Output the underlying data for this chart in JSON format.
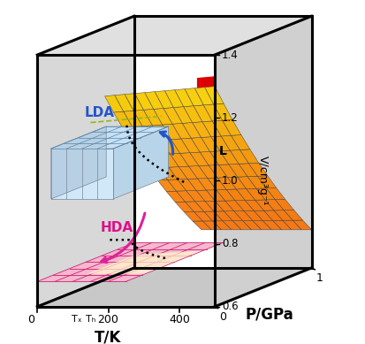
{
  "xlabel": "T/K",
  "ylabel": "P/GPa",
  "zlabel": "V/cm³g⁻¹",
  "T_ticks": [
    "0",
    "200",
    "400"
  ],
  "P_ticks": [
    "0",
    "1"
  ],
  "V_ticks": [
    "0.6",
    "0.8",
    "1.0",
    "1.2",
    "1.4"
  ],
  "LDA_text": "LDA",
  "HDA_text": "HDA",
  "L_label": "L",
  "Tx_label": "Tₓ",
  "TH_label": "Tₕ",
  "box_face_color": "#d8d8d8",
  "box_edge_color": "#000000",
  "HDA_fill": "#f0a0b8",
  "HDA_line": "#dd2288",
  "LDA_fill": "#c0d8f0",
  "LDA_line": "#6688bb",
  "liquid_orange": "#f5a020",
  "liquid_yellow": "#ffe080",
  "red_line": "#dd0000",
  "dot_line": "#111111",
  "green_dash": "#88bb22",
  "arrow_blue": "#2255cc",
  "arrow_pink": "#dd2299"
}
